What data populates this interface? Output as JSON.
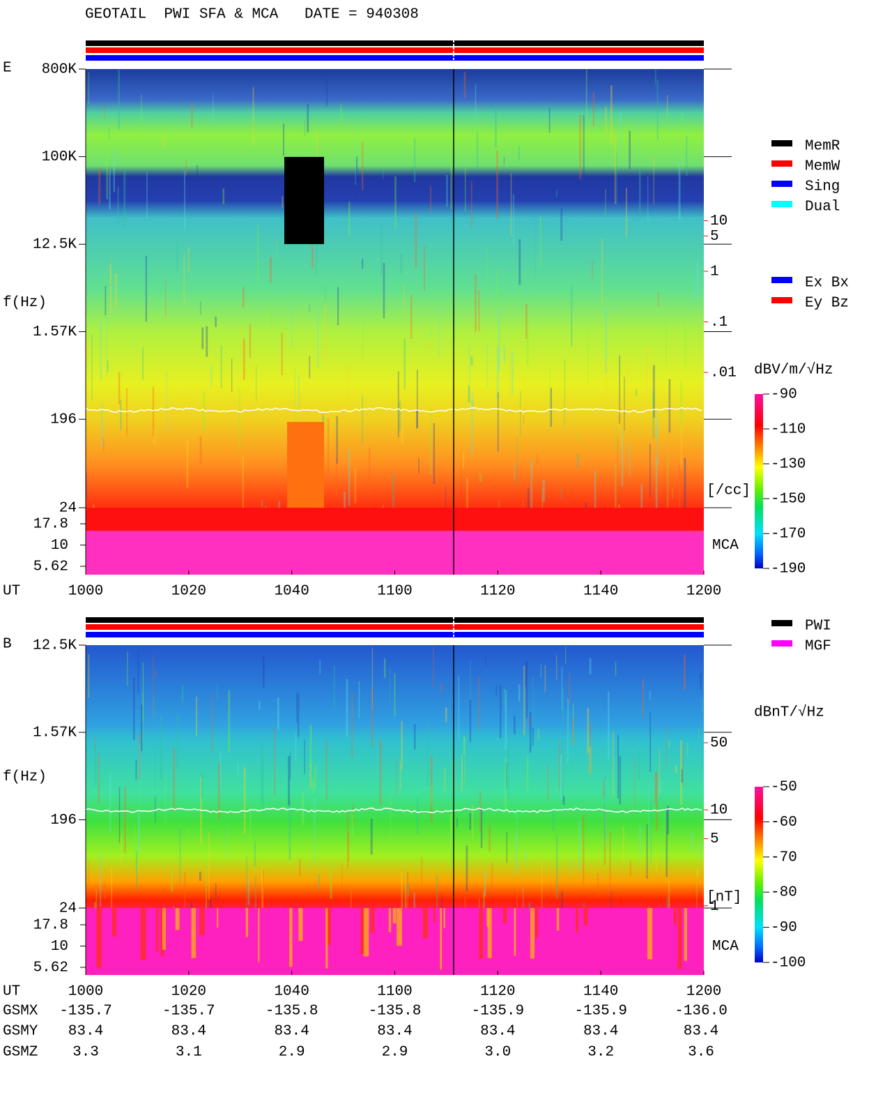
{
  "title": "GEOTAIL  PWI SFA & MCA   DATE = 940308",
  "chart_data": [
    {
      "type": "spectrogram",
      "panel_label": "E",
      "y_label": "f(Hz)",
      "x_label": "UT",
      "categories": [
        "1000",
        "1020",
        "1040",
        "1100",
        "1120",
        "1140",
        "1200"
      ],
      "log_scale": true,
      "ylim": [
        24,
        800000
      ],
      "yticks": [
        {
          "value": 800000,
          "label": "800K"
        },
        {
          "value": 100000,
          "label": "100K"
        },
        {
          "value": 12500,
          "label": "12.5K"
        },
        {
          "value": 1570,
          "label": "1.57K"
        },
        196,
        24
      ],
      "mca_label": "MCA",
      "mca_yticks": [
        17.8,
        10,
        5.62
      ],
      "colorbar": {
        "label": "dBV/m/√Hz",
        "clim": [
          -190,
          -90
        ],
        "ticks": [
          -90,
          -110,
          -130,
          -150,
          -170,
          -190
        ]
      },
      "density_axis": {
        "unit_label": "[/cc]",
        "color": "#ff0000",
        "log_scale": true,
        "ylim": [
          1e-06,
          10000
        ],
        "ticks": [
          10,
          5,
          1,
          {
            "value": 0.1,
            "label": ".1"
          },
          {
            "value": 0.01,
            "label": ".01"
          }
        ]
      },
      "legend": [
        {
          "name": "MemR",
          "color": "#000000"
        },
        {
          "name": "MemW",
          "color": "#ff0000"
        },
        {
          "name": "Sing",
          "color": "#0000ff"
        },
        {
          "name": "Dual",
          "color": "#00ffff"
        }
      ],
      "legend2": [
        {
          "name": "Ex Bx",
          "color": "#0000ff"
        },
        {
          "name": "Ey Bz",
          "color": "#ff0000"
        }
      ]
    },
    {
      "type": "spectrogram",
      "panel_label": "B",
      "y_label": "f(Hz)",
      "x_label": "UT",
      "categories": [
        "1000",
        "1020",
        "1040",
        "1100",
        "1120",
        "1140",
        "1200"
      ],
      "log_scale": true,
      "ylim": [
        24,
        12500
      ],
      "yticks": [
        {
          "value": 12500,
          "label": "12.5K"
        },
        {
          "value": 1570,
          "label": "1.57K"
        },
        196,
        24
      ],
      "mca_label": "MCA",
      "mca_yticks": [
        17.8,
        10,
        5.62
      ],
      "colorbar": {
        "label": "dBnT/√Hz",
        "clim": [
          -100,
          -50
        ],
        "ticks": [
          -50,
          -60,
          -70,
          -80,
          -90,
          -100
        ]
      },
      "density_axis": {
        "unit_label": "[nT]",
        "color": "#ff0000",
        "log_scale": true,
        "ylim": [
          0.19,
          520
        ],
        "ticks": [
          50,
          10,
          5,
          1
        ]
      },
      "legend": [
        {
          "name": "PWI",
          "color": "#000000"
        },
        {
          "name": "MGF",
          "color": "#ff00ff"
        }
      ]
    }
  ],
  "coordinates": {
    "rows": [
      {
        "label": "GSMX",
        "values": [
          "-135.7",
          "-135.7",
          "-135.8",
          "-135.8",
          "-135.9",
          "-135.9",
          "-136.0"
        ]
      },
      {
        "label": "GSMY",
        "values": [
          "83.4",
          "83.4",
          "83.4",
          "83.4",
          "83.4",
          "83.4",
          "83.4"
        ]
      },
      {
        "label": "GSMZ",
        "values": [
          "3.3",
          "3.1",
          "2.9",
          "2.9",
          "3.0",
          "3.2",
          "3.6"
        ]
      }
    ]
  }
}
